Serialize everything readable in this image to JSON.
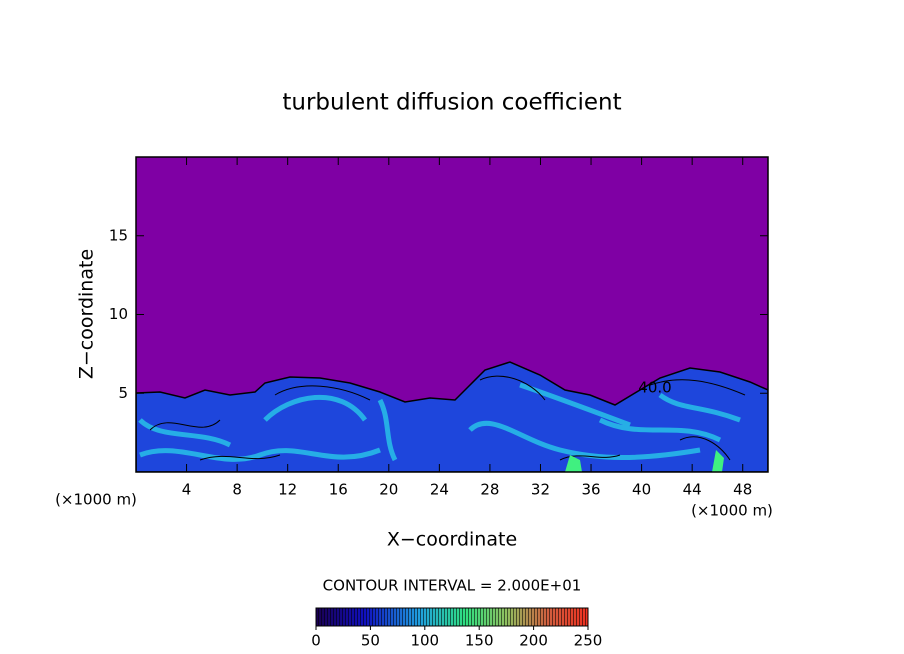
{
  "chart_data": {
    "type": "contour",
    "title": "turbulent diffusion coefficient",
    "x_label": "X−coordinate",
    "y_label": "Z−coordinate",
    "x_unit_label": "(×1000 m)",
    "y_unit_label": "(×1000 m)",
    "xlim": [
      0,
      50
    ],
    "xticks": [
      4,
      8,
      12,
      16,
      20,
      24,
      28,
      32,
      36,
      40,
      44,
      48
    ],
    "ylim": [
      0,
      20
    ],
    "yticks": [
      5,
      10,
      15
    ],
    "contour_interval_label": "CONTOUR INTERVAL = 2.000E+01",
    "annotation": "40.0",
    "colorbar": {
      "lim": [
        0,
        250
      ],
      "ticks": [
        0,
        50,
        100,
        150,
        200,
        250
      ]
    }
  }
}
